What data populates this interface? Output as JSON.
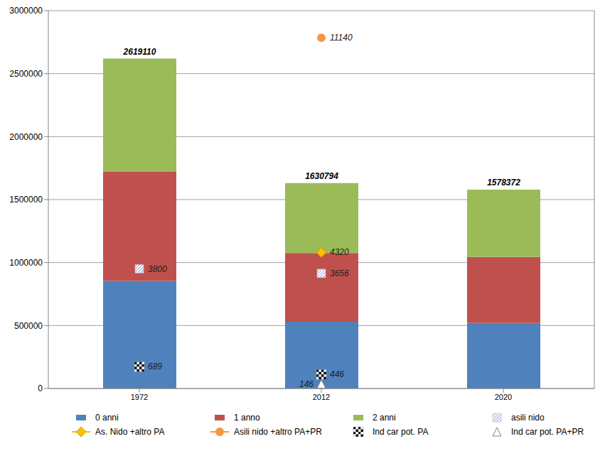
{
  "chart_data": {
    "type": "bar",
    "stacked": true,
    "grid": true,
    "legend": "bottom",
    "categories": [
      "1972",
      "2012",
      "2020"
    ],
    "ylim": [
      0,
      3000000
    ],
    "yticks": [
      0,
      500000,
      1000000,
      1500000,
      2000000,
      2500000,
      3000000
    ],
    "y2lim": [
      0,
      12000
    ],
    "y2ticks": [],
    "totals": [
      2619110,
      1630794,
      1578372
    ],
    "series": [
      {
        "name": "0 anni",
        "type": "bar",
        "color": "#4F81BD",
        "values": [
          855000,
          530000,
          520000
        ]
      },
      {
        "name": "1 anno",
        "type": "bar",
        "color": "#C0504D",
        "values": [
          865000,
          545000,
          525000
        ]
      },
      {
        "name": "2 anni",
        "type": "bar",
        "color": "#9BBB59",
        "values": [
          899110,
          555794,
          533372
        ]
      },
      {
        "name": "asili nido",
        "type": "scatter",
        "axis": "y2",
        "marker": "hatched_square",
        "color": "#6A5ACD",
        "data_labels": true,
        "values": [
          3800,
          3656,
          null
        ]
      },
      {
        "name": "As. Nido +altro PA",
        "type": "scatter",
        "axis": "y2",
        "marker": "diamond",
        "color": "#FFC000",
        "data_labels": true,
        "values": [
          null,
          4320,
          null
        ]
      },
      {
        "name": "Asili nido +altro  PA+PR",
        "type": "scatter",
        "axis": "y2",
        "marker": "circle",
        "color": "#F79646",
        "data_labels": true,
        "values": [
          null,
          11140,
          null
        ]
      },
      {
        "name": "Ind car pot. PA",
        "type": "scatter",
        "axis": "y2",
        "marker": "checkered_square",
        "color": "#000000",
        "data_labels": true,
        "values": [
          689,
          446,
          null
        ]
      },
      {
        "name": "Ind car pot. PA+PR",
        "type": "scatter",
        "axis": "y2",
        "marker": "triangle",
        "color": "#808080",
        "data_labels": true,
        "values": [
          null,
          146,
          null
        ]
      }
    ]
  }
}
